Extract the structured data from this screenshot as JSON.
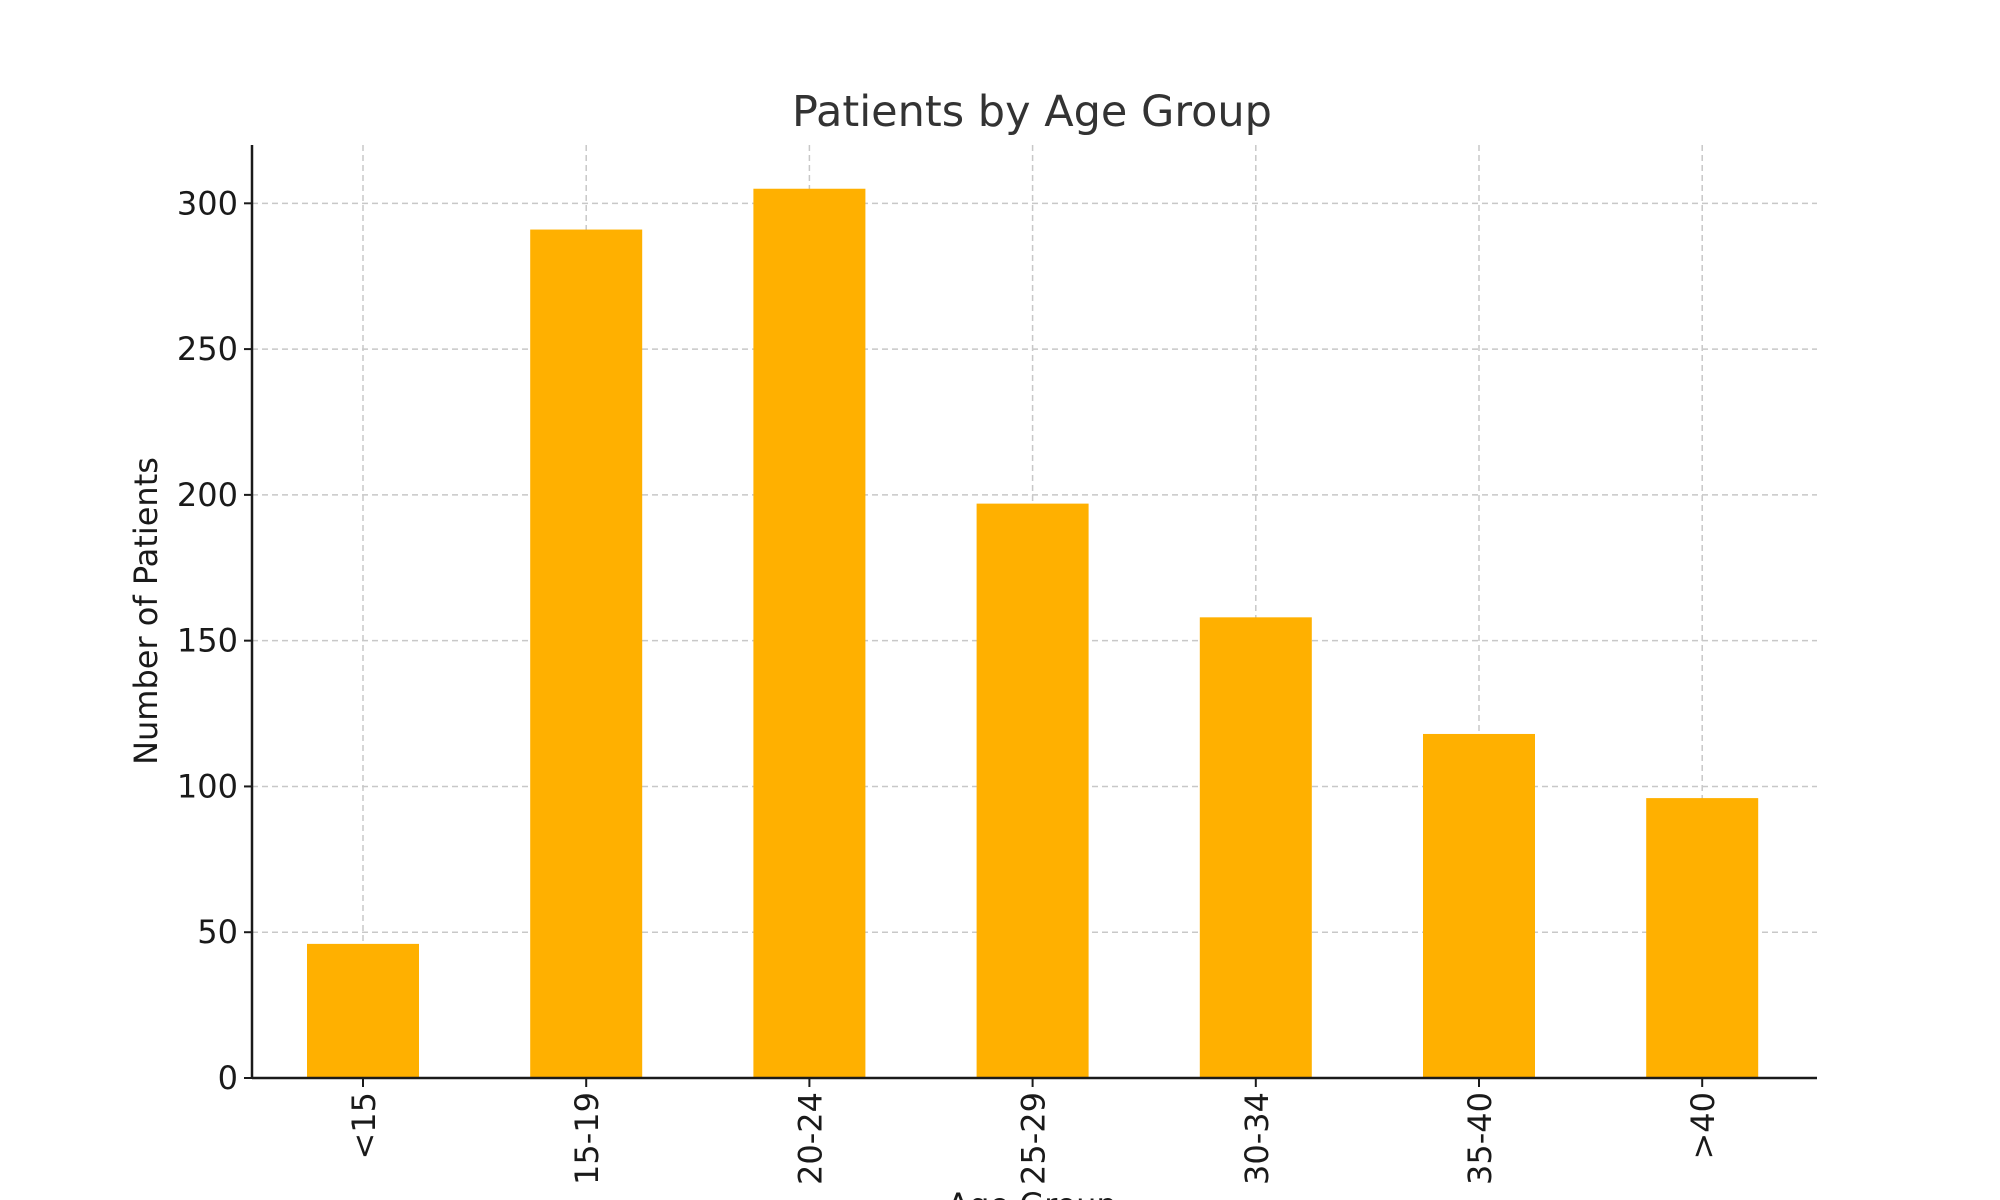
{
  "chart_data": {
    "type": "bar",
    "title": "Patients by Age Group",
    "xlabel": "Age Group",
    "ylabel": "Number of Patients",
    "categories": [
      "<15",
      "15-19",
      "20-24",
      "25-29",
      "30-34",
      "35-40",
      ">40"
    ],
    "values": [
      46,
      291,
      305,
      197,
      158,
      118,
      96
    ],
    "ylim": [
      0,
      320
    ],
    "yticks": [
      0,
      50,
      100,
      150,
      200,
      250,
      300
    ],
    "grid": true,
    "colors": {
      "bar": "#FFB000"
    }
  }
}
